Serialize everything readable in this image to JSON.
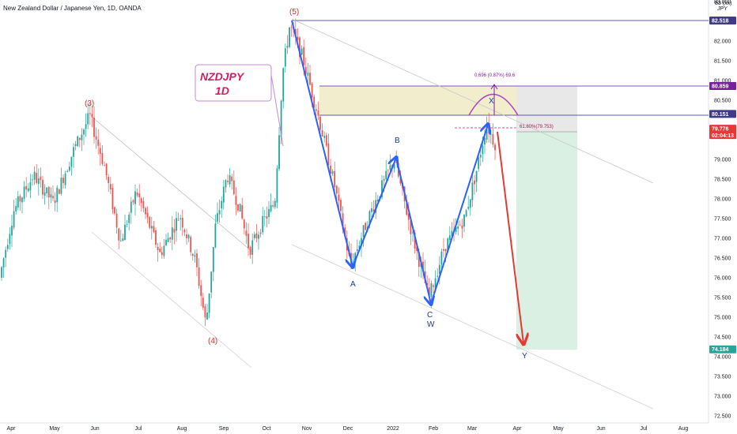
{
  "header": {
    "title": "New Zealand Dollar / Japanese Yen, 1D, OANDA",
    "axis_unit_top": "83 (xx)",
    "axis_unit": "JPY"
  },
  "chart_data": {
    "type": "candlestick",
    "symbol": "NZDJPY",
    "timeframe": "1D",
    "y_ticks": [
      "83.000",
      "82.000",
      "81.500",
      "81.000",
      "80.500",
      "79.000",
      "78.500",
      "78.000",
      "77.500",
      "77.000",
      "76.500",
      "76.000",
      "75.500",
      "75.000",
      "74.500",
      "74.000",
      "73.500",
      "73.000",
      "72.500"
    ],
    "x_ticks": [
      "Apr",
      "May",
      "Jun",
      "Jul",
      "Aug",
      "Sep",
      "Oct",
      "Nov",
      "Dec",
      "2022",
      "Feb",
      "Mar",
      "Apr",
      "May",
      "Jun",
      "Jul",
      "Aug"
    ],
    "ylim": [
      72.35,
      83.15
    ],
    "price_labels": [
      {
        "value": 82.518,
        "text": "82.518",
        "color": "#3f3b8a"
      },
      {
        "value": 80.859,
        "text": "80.859",
        "color": "#7b1fa2"
      },
      {
        "value": 80.151,
        "text": "80.151",
        "color": "#3f3b8a"
      },
      {
        "value": 79.776,
        "text": "79.776",
        "sub": "02:04:13",
        "color": "#e53935"
      },
      {
        "value": 74.184,
        "text": "74.184",
        "color": "#26a69a"
      }
    ],
    "annotations": {
      "wave_labels": [
        "(3)",
        "(4)",
        "(5)"
      ],
      "pattern_labels": [
        "A",
        "B",
        "C",
        "W",
        "X",
        "Y"
      ],
      "box_title_1": "NZDJPY",
      "box_title_2": "1D",
      "fib_label": "61.80%(79.753)",
      "measure_label": "0.696 (0.87%) 69.6"
    },
    "pattern_points": [
      {
        "label": "(5)",
        "date": "2021-10-20",
        "price": 82.518
      },
      {
        "label": "A",
        "date": "2021-12-03",
        "price": 76.2
      },
      {
        "label": "B",
        "date": "2021-12-30",
        "price": 79.1
      },
      {
        "label": "C",
        "date": "2022-01-28",
        "price": 75.35
      },
      {
        "label": "X",
        "date": "2022-03-14",
        "price": 79.78
      },
      {
        "label": "Y",
        "date": "2022-04-05",
        "price": 74.184
      }
    ],
    "zones": [
      {
        "name": "resistance",
        "from": 80.151,
        "to": 80.859,
        "color": "#f0ebc8"
      },
      {
        "name": "stop",
        "from": 79.776,
        "to": 80.859,
        "color": "#e8e8e8"
      },
      {
        "name": "target",
        "from": 74.184,
        "to": 79.776,
        "color": "#d6eedf"
      }
    ]
  }
}
